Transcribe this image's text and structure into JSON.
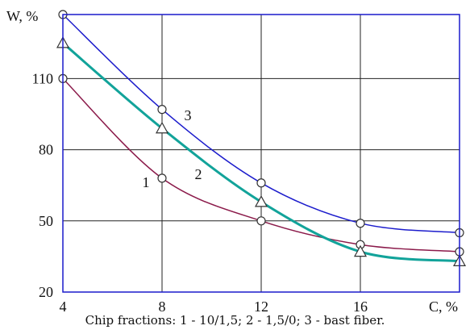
{
  "chart_data": {
    "type": "line",
    "x": [
      4,
      8,
      12,
      16,
      20
    ],
    "xlim": [
      4,
      20
    ],
    "ylim": [
      20,
      137
    ],
    "xticks": [
      4,
      8,
      12,
      16
    ],
    "xtick_labels": [
      "4",
      "8",
      "12",
      "16"
    ],
    "yticks": [
      20,
      50,
      80,
      110
    ],
    "ytick_labels": [
      "20",
      "50",
      "80",
      "110"
    ],
    "ylabel": "W, %",
    "xlabel": "C, %",
    "grid": true,
    "series": [
      {
        "name": "1",
        "color": "#8b1a4a",
        "marker": "circle",
        "values": [
          110,
          68,
          50,
          40,
          37
        ]
      },
      {
        "name": "2",
        "color": "#12a39a",
        "marker": "triangle",
        "values": [
          125,
          89,
          58,
          37,
          33
        ]
      },
      {
        "name": "3",
        "color": "#1c1ccc",
        "marker": "circle",
        "values": [
          137,
          97,
          66,
          49,
          45
        ]
      }
    ]
  },
  "caption": "Chip fractions:  1 - 10/1,5; 2 - 1,5/0; 3 - bast fiber."
}
